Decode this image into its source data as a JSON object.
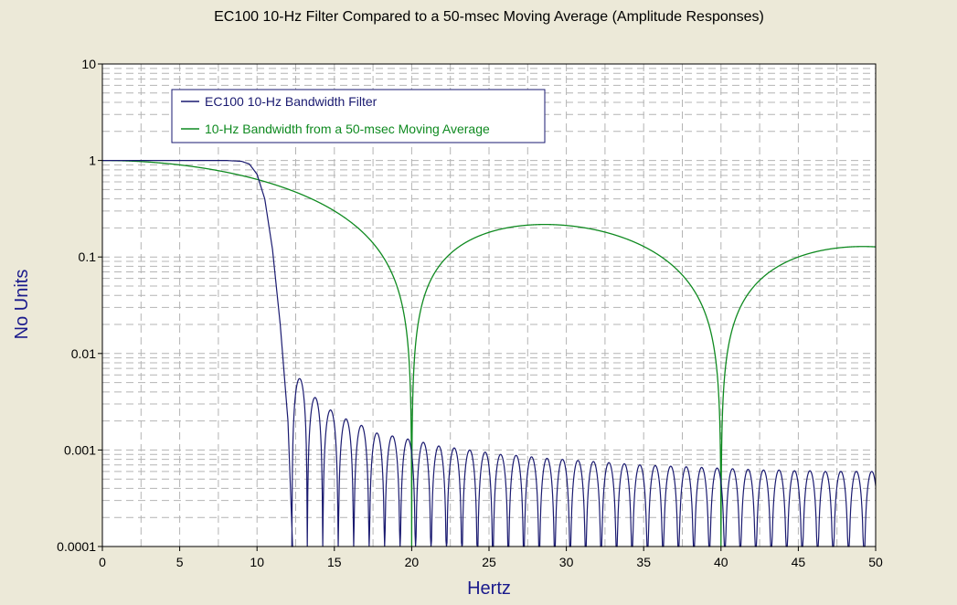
{
  "colors": {
    "background": "#ece9d8",
    "plot_area": "#ffffff",
    "grid": "#b4b4b4",
    "axis_label": "#1a1a8c",
    "filter_line": "#1a1a70",
    "moving_average_line": "#0f8a20"
  },
  "chart_data": {
    "type": "line",
    "title": "EC100 10-Hz Filter Compared to a 50-msec Moving Average (Amplitude Responses)",
    "xlabel": "Hertz",
    "ylabel": "No Units",
    "xlim": [
      0,
      50
    ],
    "ylim": [
      0.0001,
      10
    ],
    "yscale": "log",
    "grid": true,
    "legend_position": "top-left",
    "x_ticks": [
      "0",
      "5",
      "10",
      "15",
      "20",
      "25",
      "30",
      "35",
      "40",
      "45",
      "50"
    ],
    "y_ticks": [
      "10",
      "1",
      "0.1",
      "0.01",
      "0.001",
      "0.0001"
    ],
    "series": [
      {
        "name": "EC100 10-Hz Bandwidth Filter",
        "description_points": {
          "x": [
            0,
            2,
            4,
            6,
            8,
            9,
            9.5,
            10,
            10.5,
            11,
            11.5,
            12,
            12.3
          ],
          "y": [
            1,
            1,
            1,
            1,
            1,
            0.98,
            0.92,
            0.72,
            0.4,
            0.12,
            0.02,
            0.002,
            0.0001
          ]
        },
        "sidelobe_peaks": {
          "x": [
            12.75,
            13.75,
            14.75,
            15.75,
            16.75,
            17.75,
            18.75,
            19.75,
            20.75,
            21.75,
            22.75,
            23.75,
            24.75,
            25.75,
            26.75,
            27.75,
            28.75,
            29.75,
            30.75,
            31.75,
            32.75,
            33.75,
            34.75,
            35.75,
            36.75,
            37.75,
            38.75,
            39.75,
            40.75,
            41.75,
            42.75,
            43.75,
            44.75,
            45.75,
            46.75,
            47.75,
            48.75,
            49.75
          ],
          "y": [
            0.0055,
            0.0035,
            0.0026,
            0.0021,
            0.0018,
            0.0015,
            0.0014,
            0.0013,
            0.0012,
            0.0011,
            0.00105,
            0.001,
            0.00095,
            0.0009,
            0.00088,
            0.00085,
            0.00082,
            0.0008,
            0.00078,
            0.00076,
            0.00074,
            0.00072,
            0.0007,
            0.00069,
            0.00068,
            0.00067,
            0.00066,
            0.00065,
            0.00064,
            0.00063,
            0.00062,
            0.00062,
            0.00061,
            0.00061,
            0.0006,
            0.0006,
            0.0006,
            0.0006
          ]
        }
      },
      {
        "name": "10-Hz Bandwidth from a 50-msec Moving Average",
        "formula": "|sin(pi*f*0.05)/(pi*f*0.05)|",
        "x_samples": [
          0,
          5,
          10,
          15,
          20,
          25,
          28.6,
          35,
          40,
          45,
          50
        ],
        "y_samples": [
          1,
          0.9,
          0.637,
          0.3,
          0.0001,
          0.18,
          0.217,
          0.129,
          0.0001,
          0.1,
          0.127
        ]
      }
    ]
  }
}
